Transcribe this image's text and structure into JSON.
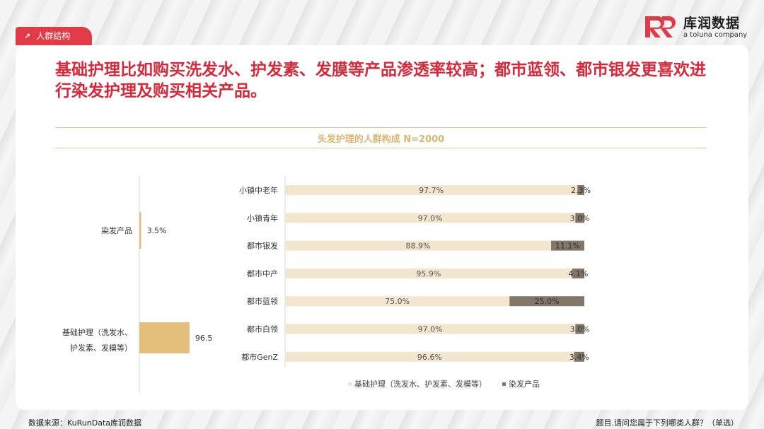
{
  "header": {
    "section_tag": "人群结构",
    "logo_name": "库润数据",
    "logo_sub": "a toluna company",
    "headline": "基础护理比如购买洗发水、护发素、发膜等产品渗透率较高；都市蓝领、都市银发更喜欢进行染发护理及购买相关产品。"
  },
  "footer": {
    "source": "数据来源：KuRunData库润数据",
    "question": "题目.请问您属于下列哪类人群？（单选）"
  },
  "colors": {
    "accent": "#e23b48",
    "headline": "#d8283a",
    "title_gold": "#d9b46f",
    "basic_care": "#f3e6cf",
    "dye": "#827668",
    "left_bar": "#e4bf7c"
  },
  "chart_data": [
    {
      "type": "bar",
      "orientation": "horizontal",
      "categories": [
        "染发产品",
        "基础护理（洗发水、护发素、发模等）"
      ],
      "values": [
        3.5,
        96.5
      ],
      "value_labels": [
        "3.5%",
        "96.5%"
      ],
      "xlim": [
        0,
        100
      ]
    },
    {
      "type": "bar",
      "orientation": "horizontal",
      "stacked": true,
      "title": "头发护理的人群构成 N=2000",
      "categories": [
        "小镇中老年",
        "小镇青年",
        "都市银发",
        "都市中产",
        "都市蓝领",
        "都市白领",
        "都市GenZ"
      ],
      "series": [
        {
          "name": "基础护理（洗发水、护发素、发模等）",
          "values": [
            97.7,
            97.0,
            88.9,
            95.9,
            75.0,
            97.0,
            96.6
          ],
          "labels": [
            "97.7%",
            "97.0%",
            "88.9%",
            "95.9%",
            "75.0%",
            "97.0%",
            "96.6%"
          ]
        },
        {
          "name": "染发产品",
          "values": [
            2.3,
            3.0,
            11.1,
            4.1,
            25.0,
            3.0,
            3.4
          ],
          "labels": [
            "2.3%",
            "3.0%",
            "11.1%",
            "4.1%",
            "25.0%",
            "3.0%",
            "3.4%"
          ]
        }
      ],
      "xlim": [
        0,
        100
      ],
      "legend_position": "bottom"
    }
  ]
}
